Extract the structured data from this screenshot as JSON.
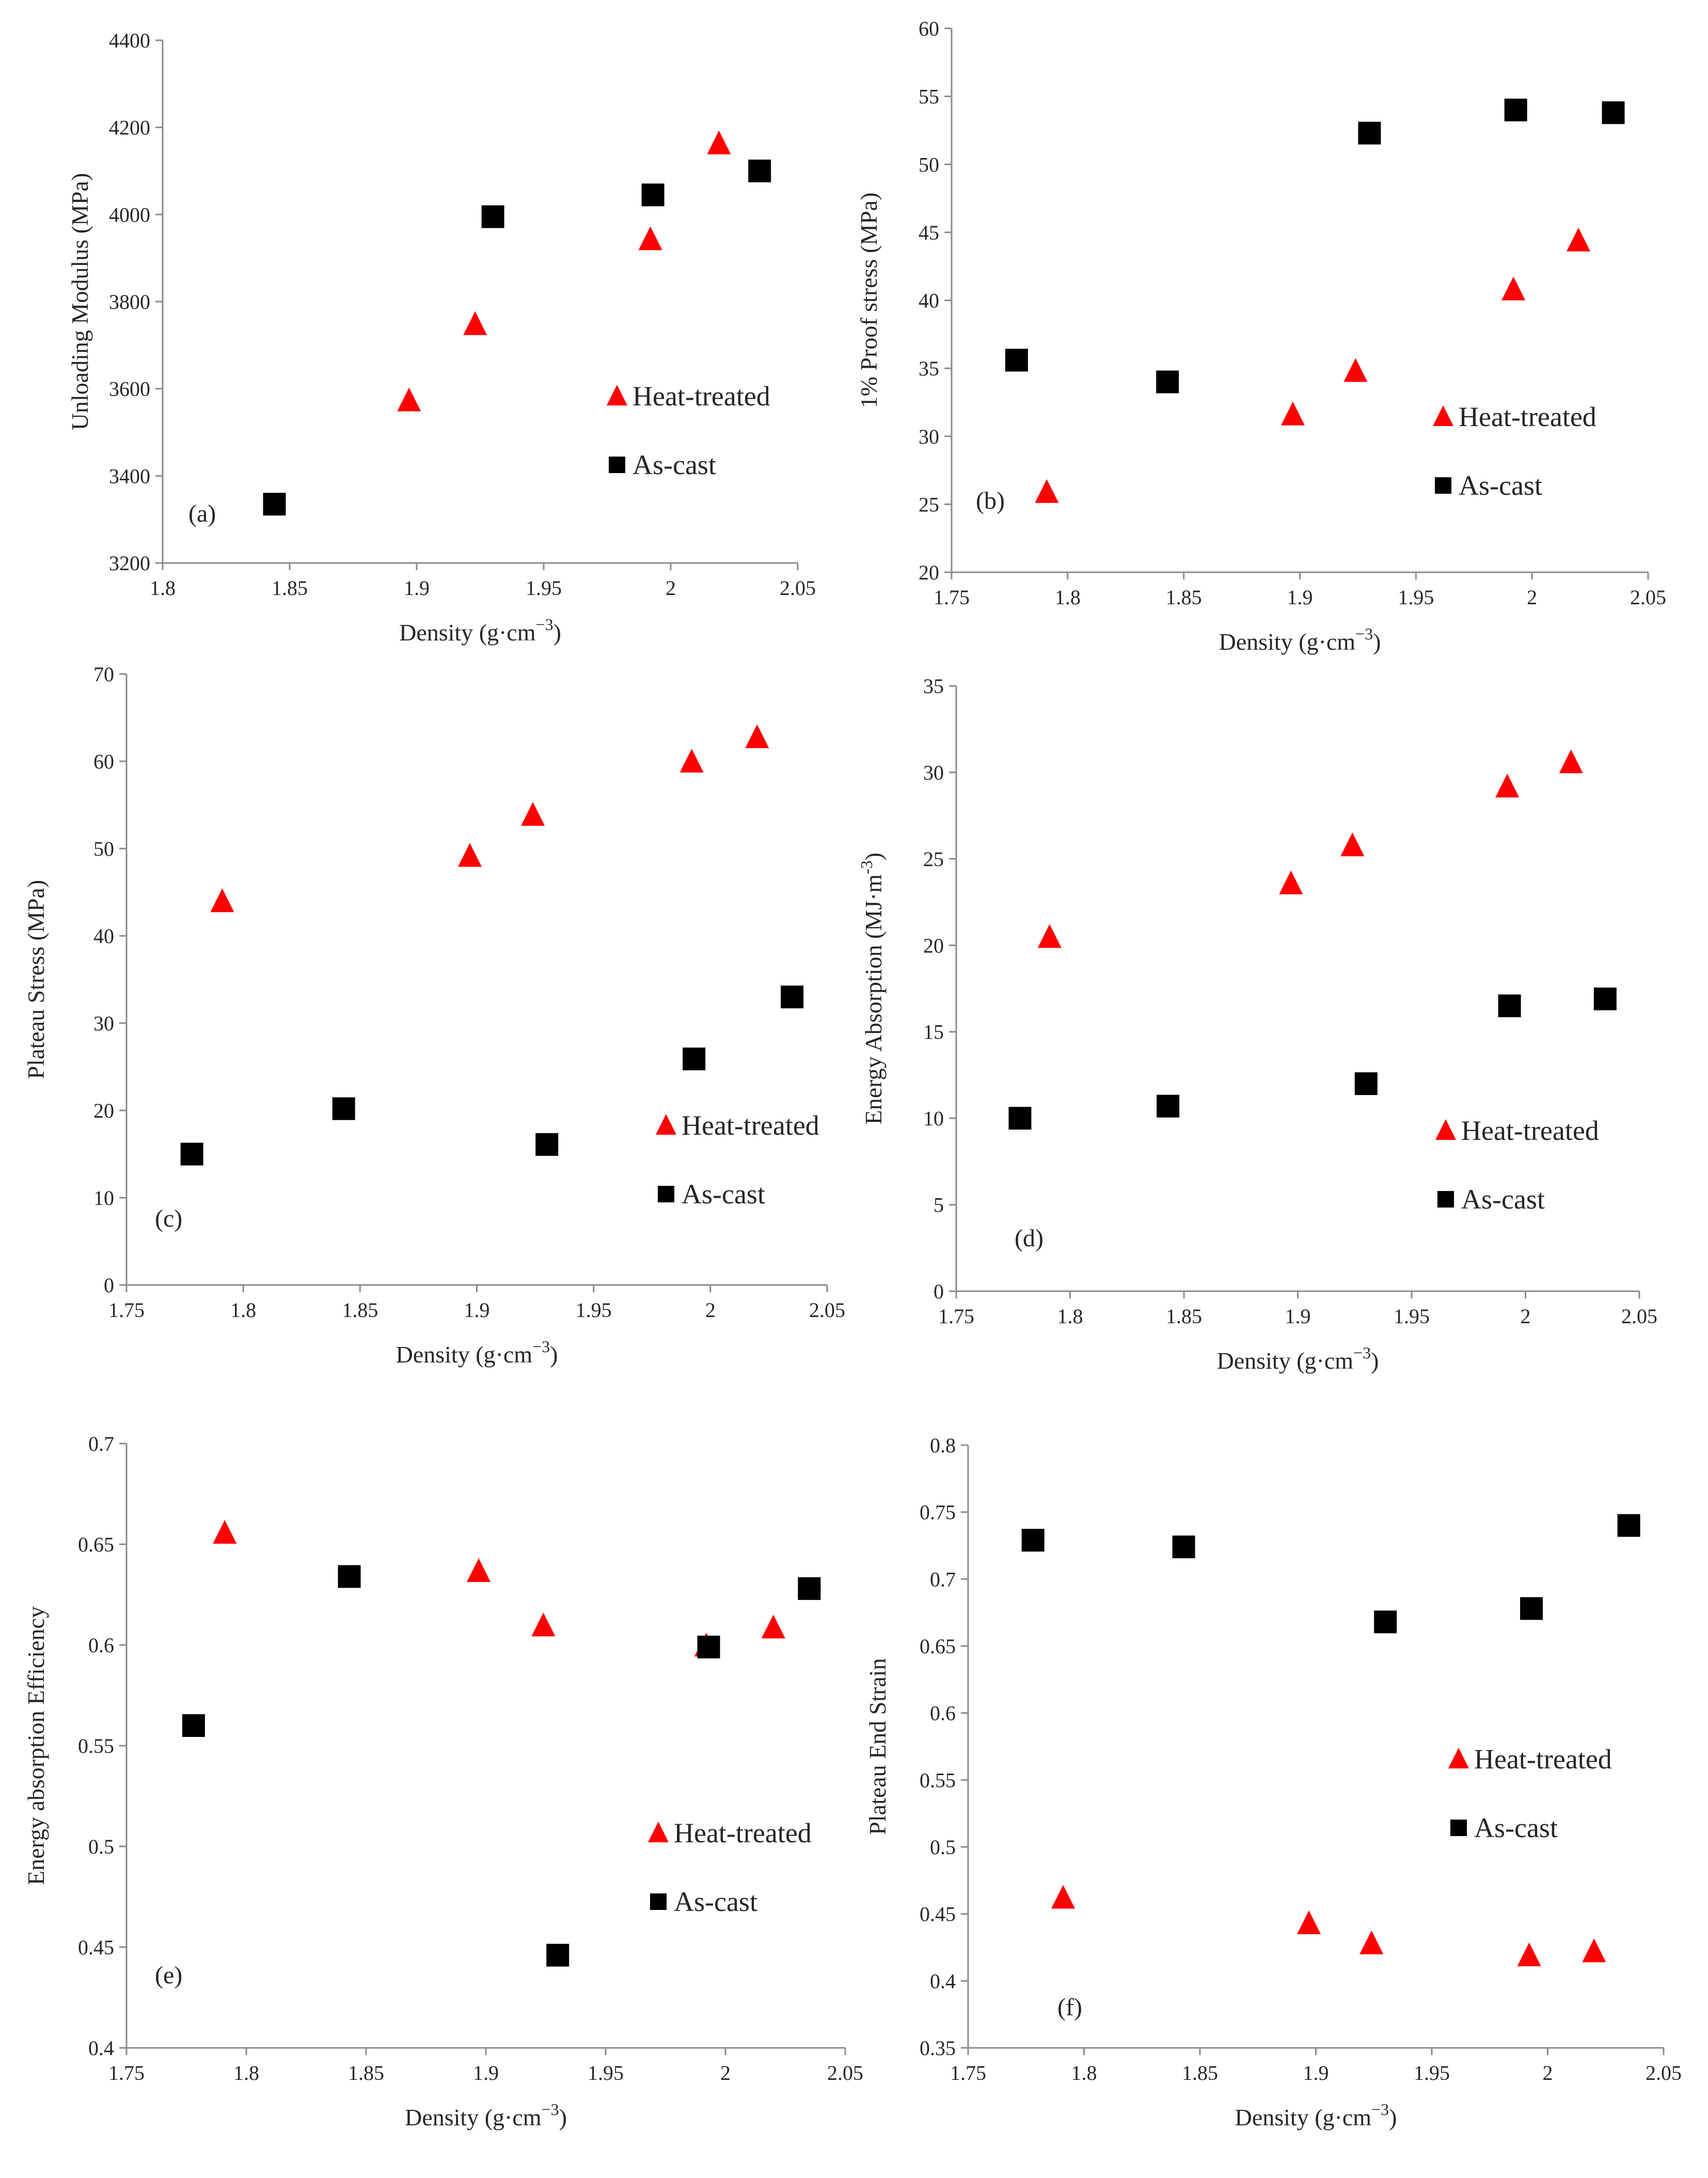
{
  "chart_data": [
    {
      "type": "scatter",
      "panel_label": "(a)",
      "xlabel": "Density (g·cm",
      "xlabel_sup": "−3",
      "xlabel_close": ")",
      "ylabel": "Unloading Modulus (MPa)",
      "xlim": [
        1.8,
        2.05
      ],
      "ylim": [
        3200,
        4400
      ],
      "xticks": [
        1.8,
        1.85,
        1.9,
        1.95,
        2,
        2.05
      ],
      "yticks": [
        3200,
        3400,
        3600,
        3800,
        4000,
        4200,
        4400
      ],
      "legend_position": "center-right",
      "series": [
        {
          "name": "Heat-treated",
          "marker": "triangle",
          "color": "#ff0000",
          "x": [
            1.897,
            1.923,
            1.992,
            2.019
          ],
          "y": [
            3570,
            3745,
            3940,
            4160
          ]
        },
        {
          "name": "As-cast",
          "marker": "square",
          "color": "#000000",
          "x": [
            1.844,
            1.93,
            1.993,
            2.035
          ],
          "y": [
            3335,
            3995,
            4045,
            4100
          ]
        }
      ]
    },
    {
      "type": "scatter",
      "panel_label": "(b)",
      "xlabel": "Density (g·cm",
      "xlabel_sup": "−3",
      "xlabel_close": ")",
      "ylabel": "1% Proof stress (MPa)",
      "xlim": [
        1.75,
        2.05
      ],
      "ylim": [
        20,
        60
      ],
      "xticks": [
        1.75,
        1.8,
        1.85,
        1.9,
        1.95,
        2,
        2.05
      ],
      "yticks": [
        20,
        25,
        30,
        35,
        40,
        45,
        50,
        55,
        60
      ],
      "legend_position": "center-right",
      "series": [
        {
          "name": "Heat-treated",
          "marker": "triangle",
          "color": "#ff0000",
          "x": [
            1.791,
            1.897,
            1.924,
            1.992,
            2.02
          ],
          "y": [
            25.8,
            31.5,
            34.7,
            40.7,
            44.3
          ]
        },
        {
          "name": "As-cast",
          "marker": "square",
          "color": "#000000",
          "x": [
            1.778,
            1.843,
            1.93,
            1.993,
            2.035
          ],
          "y": [
            35.6,
            34.0,
            52.3,
            54.0,
            53.8
          ]
        }
      ]
    },
    {
      "type": "scatter",
      "panel_label": "(c)",
      "xlabel": "Density (g·cm",
      "xlabel_sup": "−3",
      "xlabel_close": ")",
      "ylabel": "Plateau Stress (MPa)",
      "xlim": [
        1.75,
        2.05
      ],
      "ylim": [
        0,
        70
      ],
      "xticks": [
        1.75,
        1.8,
        1.85,
        1.9,
        1.95,
        2,
        2.05
      ],
      "yticks": [
        0,
        10,
        20,
        30,
        40,
        50,
        60,
        70
      ],
      "legend_position": "bottom-right",
      "series": [
        {
          "name": "Heat-treated",
          "marker": "triangle",
          "color": "#ff0000",
          "x": [
            1.791,
            1.897,
            1.924,
            1.992,
            2.02
          ],
          "y": [
            43.8,
            49.0,
            53.7,
            59.8,
            62.6
          ]
        },
        {
          "name": "As-cast",
          "marker": "square",
          "color": "#000000",
          "x": [
            1.778,
            1.843,
            1.93,
            1.993,
            2.035
          ],
          "y": [
            15.0,
            20.2,
            16.1,
            25.9,
            33.0
          ]
        }
      ]
    },
    {
      "type": "scatter",
      "panel_label": "(d)",
      "xlabel": "Density (g·cm",
      "xlabel_sup": "−3",
      "xlabel_close": ")",
      "ylabel": "Energy Absorption (MJ·m",
      "ylabel_sup": "-3",
      "ylabel_close": ")",
      "xlim": [
        1.75,
        2.05
      ],
      "ylim": [
        0,
        35
      ],
      "xticks": [
        1.75,
        1.8,
        1.85,
        1.9,
        1.95,
        2,
        2.05
      ],
      "yticks": [
        0,
        5,
        10,
        15,
        20,
        25,
        30,
        35
      ],
      "legend_position": "bottom-right",
      "series": [
        {
          "name": "Heat-treated",
          "marker": "triangle",
          "color": "#ff0000",
          "x": [
            1.791,
            1.897,
            1.924,
            1.992,
            2.02
          ],
          "y": [
            20.4,
            23.5,
            25.7,
            29.1,
            30.5
          ]
        },
        {
          "name": "As-cast",
          "marker": "square",
          "color": "#000000",
          "x": [
            1.778,
            1.843,
            1.93,
            1.993,
            2.035
          ],
          "y": [
            10.0,
            10.7,
            12.0,
            16.5,
            16.9
          ]
        }
      ]
    },
    {
      "type": "scatter",
      "panel_label": "(e)",
      "xlabel": "Density (g·cm",
      "xlabel_sup": "−3",
      "xlabel_close": ")",
      "ylabel": "Energy absorption Efficiency",
      "xlim": [
        1.75,
        2.05
      ],
      "ylim": [
        0.4,
        0.7
      ],
      "xticks": [
        1.75,
        1.8,
        1.85,
        1.9,
        1.95,
        2,
        2.05
      ],
      "yticks": [
        0.4,
        0.45,
        0.5,
        0.55,
        0.6,
        0.65,
        0.7
      ],
      "legend_position": "bottom-right",
      "series": [
        {
          "name": "Heat-treated",
          "marker": "triangle",
          "color": "#ff0000",
          "x": [
            1.791,
            1.897,
            1.924,
            1.992,
            2.02
          ],
          "y": [
            0.655,
            0.636,
            0.609,
            0.599,
            0.608
          ]
        },
        {
          "name": "As-cast",
          "marker": "square",
          "color": "#000000",
          "x": [
            1.778,
            1.843,
            1.93,
            1.993,
            2.035
          ],
          "y": [
            0.56,
            0.634,
            0.446,
            0.599,
            0.628
          ]
        }
      ]
    },
    {
      "type": "scatter",
      "panel_label": "(f)",
      "xlabel": "Density (g·cm",
      "xlabel_sup": "−3",
      "xlabel_close": ")",
      "ylabel": "Plateau End Strain",
      "xlim": [
        1.75,
        2.05
      ],
      "ylim": [
        0.35,
        0.8
      ],
      "xticks": [
        1.75,
        1.8,
        1.85,
        1.9,
        1.95,
        2,
        2.05
      ],
      "yticks": [
        0.35,
        0.4,
        0.45,
        0.5,
        0.55,
        0.6,
        0.65,
        0.7,
        0.75,
        0.8
      ],
      "legend_position": "center-right",
      "series": [
        {
          "name": "Heat-treated",
          "marker": "triangle",
          "color": "#ff0000",
          "x": [
            1.791,
            1.897,
            1.924,
            1.992,
            2.02
          ],
          "y": [
            0.461,
            0.442,
            0.427,
            0.418,
            0.421
          ]
        },
        {
          "name": "As-cast",
          "marker": "square",
          "color": "#000000",
          "x": [
            1.778,
            1.843,
            1.93,
            1.993,
            2.035
          ],
          "y": [
            0.729,
            0.724,
            0.668,
            0.678,
            0.74
          ]
        }
      ]
    }
  ]
}
